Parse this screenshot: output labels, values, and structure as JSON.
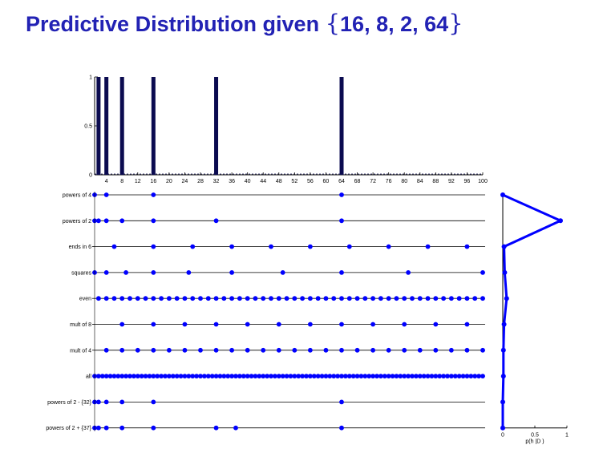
{
  "title": {
    "prefix": "Predictive Distribution given ",
    "open_brace": "{",
    "set": "16, 8, 2, 64",
    "close_brace": "}"
  },
  "chart_data": [
    {
      "type": "bar",
      "x": [
        2,
        4,
        8,
        16,
        32,
        64
      ],
      "values": [
        1,
        1,
        1,
        1,
        1,
        1
      ],
      "xlim": [
        1,
        100
      ],
      "ylim": [
        0,
        1
      ],
      "xticks": [
        4,
        8,
        12,
        16,
        20,
        24,
        28,
        32,
        36,
        40,
        44,
        48,
        52,
        56,
        60,
        64,
        68,
        72,
        76,
        80,
        84,
        88,
        92,
        96,
        100
      ],
      "yticks": [
        0,
        0.5,
        1
      ],
      "color": "#0b0b50"
    },
    {
      "type": "scatter",
      "xlim": [
        1,
        100
      ],
      "color": "#0000ff",
      "rows": [
        {
          "label": "powers of 4",
          "x": [
            1,
            4,
            16,
            64
          ]
        },
        {
          "label": "powers of 2",
          "x": [
            1,
            2,
            4,
            8,
            16,
            32,
            64
          ]
        },
        {
          "label": "ends in 6",
          "x": [
            6,
            16,
            26,
            36,
            46,
            56,
            66,
            76,
            86,
            96
          ]
        },
        {
          "label": "squares",
          "x": [
            1,
            4,
            9,
            16,
            25,
            36,
            49,
            64,
            81,
            100
          ]
        },
        {
          "label": "even",
          "x": [
            2,
            4,
            6,
            8,
            10,
            12,
            14,
            16,
            18,
            20,
            22,
            24,
            26,
            28,
            30,
            32,
            34,
            36,
            38,
            40,
            42,
            44,
            46,
            48,
            50,
            52,
            54,
            56,
            58,
            60,
            62,
            64,
            66,
            68,
            70,
            72,
            74,
            76,
            78,
            80,
            82,
            84,
            86,
            88,
            90,
            92,
            94,
            96,
            98,
            100
          ]
        },
        {
          "label": "mult of 8",
          "x": [
            8,
            16,
            24,
            32,
            40,
            48,
            56,
            64,
            72,
            80,
            88,
            96
          ]
        },
        {
          "label": "mult of 4",
          "x": [
            4,
            8,
            12,
            16,
            20,
            24,
            28,
            32,
            36,
            40,
            44,
            48,
            52,
            56,
            60,
            64,
            68,
            72,
            76,
            80,
            84,
            88,
            92,
            96,
            100
          ]
        },
        {
          "label": "all",
          "x": [
            1,
            2,
            3,
            4,
            5,
            6,
            7,
            8,
            9,
            10,
            11,
            12,
            13,
            14,
            15,
            16,
            17,
            18,
            19,
            20,
            21,
            22,
            23,
            24,
            25,
            26,
            27,
            28,
            29,
            30,
            31,
            32,
            33,
            34,
            35,
            36,
            37,
            38,
            39,
            40,
            41,
            42,
            43,
            44,
            45,
            46,
            47,
            48,
            49,
            50,
            51,
            52,
            53,
            54,
            55,
            56,
            57,
            58,
            59,
            60,
            61,
            62,
            63,
            64,
            65,
            66,
            67,
            68,
            69,
            70,
            71,
            72,
            73,
            74,
            75,
            76,
            77,
            78,
            79,
            80,
            81,
            82,
            83,
            84,
            85,
            86,
            87,
            88,
            89,
            90,
            91,
            92,
            93,
            94,
            95,
            96,
            97,
            98,
            99,
            100
          ]
        },
        {
          "label": "powers of 2 - {32}",
          "x": [
            1,
            2,
            4,
            8,
            16,
            64
          ]
        },
        {
          "label": "powers of 2 + {37}",
          "x": [
            1,
            2,
            4,
            8,
            16,
            32,
            37,
            64
          ]
        }
      ]
    },
    {
      "type": "line",
      "xlabel": "p(h |D  )",
      "xlim": [
        0,
        1
      ],
      "xticks": [
        0,
        0.5,
        1
      ],
      "color": "#0000ff",
      "categories": [
        "powers of 4",
        "powers of 2",
        "ends in 6",
        "squares",
        "even",
        "mult of 8",
        "mult of 4",
        "all",
        "powers of 2 - {32}",
        "powers of 2 + {37}"
      ],
      "values": [
        0.0,
        0.9,
        0.02,
        0.03,
        0.06,
        0.02,
        0.01,
        0.01,
        0.0,
        0.0
      ]
    }
  ]
}
